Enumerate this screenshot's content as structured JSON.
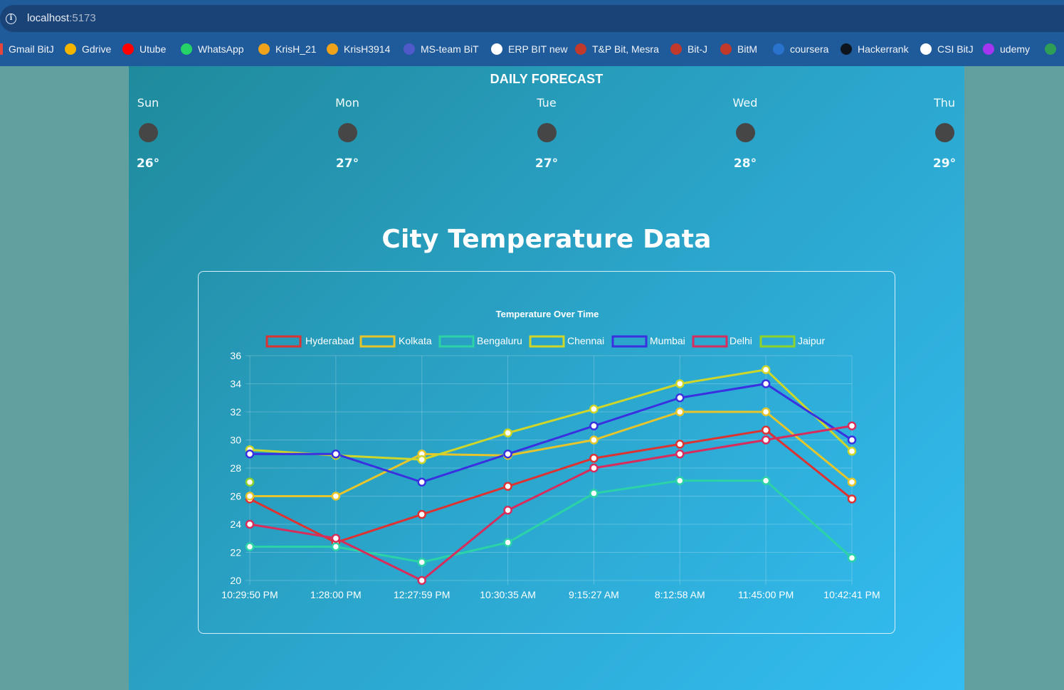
{
  "browser": {
    "url_host": "localhost",
    "url_port": ":5173",
    "bookmarks": [
      {
        "label": "Gmail BitJ",
        "icon": "gmail-icon",
        "color": "#e8453c"
      },
      {
        "label": "Gdrive",
        "icon": "google-drive-icon",
        "color": "#f4b400"
      },
      {
        "label": "Utube",
        "icon": "youtube-icon",
        "color": "#ff0000"
      },
      {
        "label": "WhatsApp",
        "icon": "whatsapp-icon",
        "color": "#25d366"
      },
      {
        "label": "KrisH_21",
        "icon": "leetcode-icon",
        "color": "#f0a31a"
      },
      {
        "label": "KrisH3914",
        "icon": "leetcode-icon",
        "color": "#f0a31a"
      },
      {
        "label": "MS-team BiT",
        "icon": "teams-icon",
        "color": "#5059c9"
      },
      {
        "label": "ERP BIT new",
        "icon": "erp-icon",
        "color": "#ffffff"
      },
      {
        "label": "T&P Bit, Mesra",
        "icon": "bit-logo-icon",
        "color": "#c0392b"
      },
      {
        "label": "Bit-J",
        "icon": "bit-logo-icon",
        "color": "#c0392b"
      },
      {
        "label": "BitM",
        "icon": "bit-logo-icon",
        "color": "#c0392b"
      },
      {
        "label": "coursera",
        "icon": "coursera-icon",
        "color": "#2a73cc"
      },
      {
        "label": "Hackerrank",
        "icon": "hackerrank-icon",
        "color": "#0e141e"
      },
      {
        "label": "CSI BitJ",
        "icon": "csi-icon",
        "color": "#ffffff"
      },
      {
        "label": "udemy",
        "icon": "udemy-icon",
        "color": "#a435f0"
      }
    ]
  },
  "forecast": {
    "title": "DAILY FORECAST",
    "days": [
      {
        "name": "Sun",
        "temp": "26°"
      },
      {
        "name": "Mon",
        "temp": "27°"
      },
      {
        "name": "Tue",
        "temp": "27°"
      },
      {
        "name": "Wed",
        "temp": "28°"
      },
      {
        "name": "Thu",
        "temp": "29°"
      }
    ]
  },
  "section_title": "City Temperature Data",
  "chart_data": {
    "type": "line",
    "title": "Temperature Over Time",
    "xlabel": "",
    "ylabel": "",
    "ylim": [
      20,
      36
    ],
    "y_ticks": [
      20,
      22,
      24,
      26,
      28,
      30,
      32,
      34,
      36
    ],
    "grid": true,
    "legend_position": "top",
    "x": [
      "10:29:50 PM",
      "1:28:00 PM",
      "12:27:59 PM",
      "10:30:35 AM",
      "9:15:27 AM",
      "8:12:58 AM",
      "11:45:00 PM",
      "10:42:41 PM"
    ],
    "series": [
      {
        "name": "Hyderabad",
        "color": "#dc3232",
        "values": [
          25.8,
          22.7,
          24.7,
          26.7,
          28.7,
          29.7,
          30.7,
          25.8
        ]
      },
      {
        "name": "Kolkata",
        "color": "#e5c52b",
        "values": [
          26.0,
          26.0,
          29.0,
          28.9,
          30.0,
          32.0,
          32.0,
          27.0
        ]
      },
      {
        "name": "Bengaluru",
        "color": "#2bd3a7",
        "values": [
          22.4,
          22.4,
          21.3,
          22.7,
          26.2,
          27.1,
          27.1,
          21.6
        ]
      },
      {
        "name": "Chennai",
        "color": "#cfd62a",
        "values": [
          29.3,
          28.9,
          28.6,
          30.5,
          32.2,
          34.0,
          35.0,
          29.2
        ]
      },
      {
        "name": "Mumbai",
        "color": "#3930e0",
        "values": [
          29.0,
          29.0,
          27.0,
          29.0,
          31.0,
          33.0,
          34.0,
          30.0
        ]
      },
      {
        "name": "Delhi",
        "color": "#d62d5c",
        "values": [
          24.0,
          23.0,
          20.0,
          25.0,
          28.0,
          29.0,
          30.0,
          31.0
        ]
      },
      {
        "name": "Jaipur",
        "color": "#8fd32a",
        "values": [
          27.0,
          null,
          null,
          null,
          null,
          null,
          null,
          null
        ]
      }
    ]
  }
}
